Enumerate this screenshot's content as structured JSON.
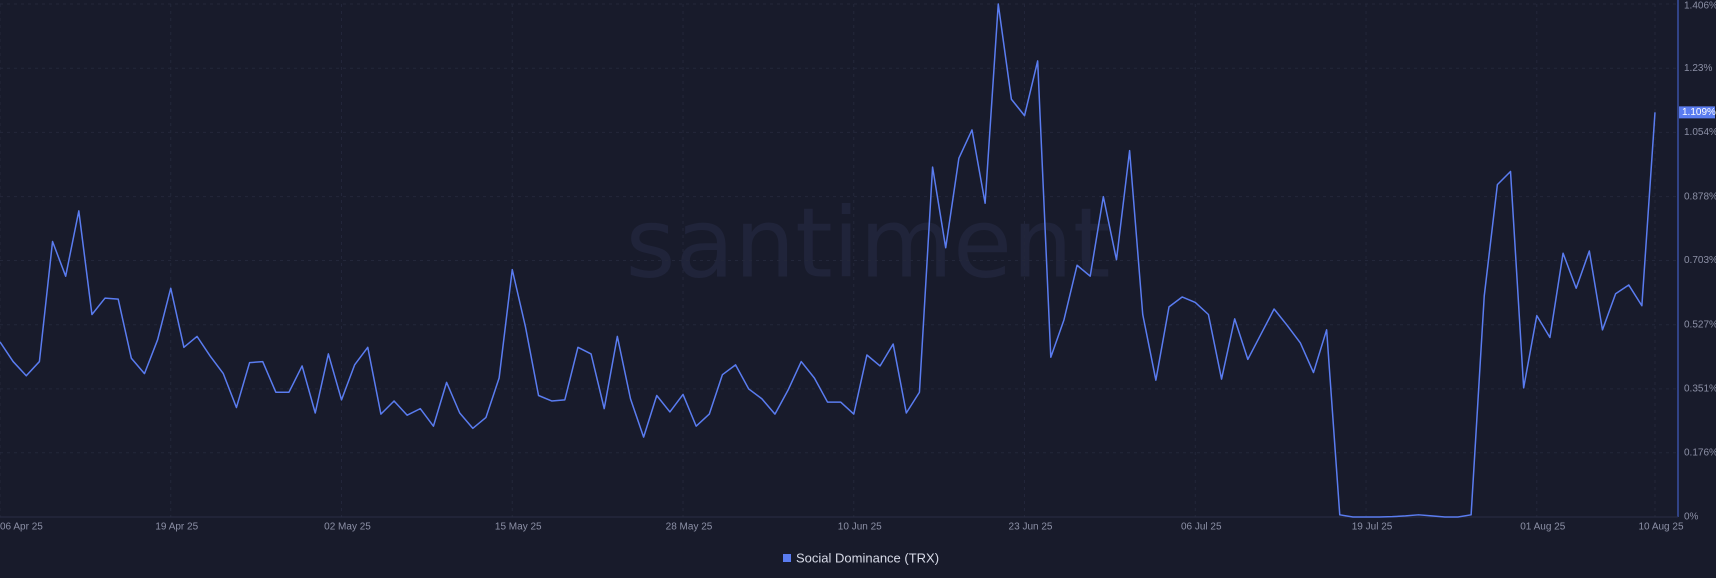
{
  "chart_data": {
    "type": "line",
    "watermark": "santiment",
    "x": [
      "2025-04-06",
      "2025-04-07",
      "2025-04-08",
      "2025-04-09",
      "2025-04-10",
      "2025-04-11",
      "2025-04-12",
      "2025-04-13",
      "2025-04-14",
      "2025-04-15",
      "2025-04-16",
      "2025-04-17",
      "2025-04-18",
      "2025-04-19",
      "2025-04-20",
      "2025-04-21",
      "2025-04-22",
      "2025-04-23",
      "2025-04-24",
      "2025-04-25",
      "2025-04-26",
      "2025-04-27",
      "2025-04-28",
      "2025-04-29",
      "2025-04-30",
      "2025-05-01",
      "2025-05-02",
      "2025-05-03",
      "2025-05-04",
      "2025-05-05",
      "2025-05-06",
      "2025-05-07",
      "2025-05-08",
      "2025-05-09",
      "2025-05-10",
      "2025-05-11",
      "2025-05-12",
      "2025-05-13",
      "2025-05-14",
      "2025-05-15",
      "2025-05-16",
      "2025-05-17",
      "2025-05-18",
      "2025-05-19",
      "2025-05-20",
      "2025-05-21",
      "2025-05-22",
      "2025-05-23",
      "2025-05-24",
      "2025-05-25",
      "2025-05-26",
      "2025-05-27",
      "2025-05-28",
      "2025-05-29",
      "2025-05-30",
      "2025-05-31",
      "2025-06-01",
      "2025-06-02",
      "2025-06-03",
      "2025-06-04",
      "2025-06-05",
      "2025-06-06",
      "2025-06-07",
      "2025-06-08",
      "2025-06-09",
      "2025-06-10",
      "2025-06-11",
      "2025-06-12",
      "2025-06-13",
      "2025-06-14",
      "2025-06-15",
      "2025-06-16",
      "2025-06-17",
      "2025-06-18",
      "2025-06-19",
      "2025-06-20",
      "2025-06-21",
      "2025-06-22",
      "2025-06-23",
      "2025-06-24",
      "2025-06-25",
      "2025-06-26",
      "2025-06-27",
      "2025-06-28",
      "2025-06-29",
      "2025-06-30",
      "2025-07-01",
      "2025-07-02",
      "2025-07-03",
      "2025-07-04",
      "2025-07-05",
      "2025-07-06",
      "2025-07-07",
      "2025-07-08",
      "2025-07-09",
      "2025-07-10",
      "2025-07-11",
      "2025-07-12",
      "2025-07-13",
      "2025-07-14",
      "2025-07-15",
      "2025-07-16",
      "2025-07-17",
      "2025-07-18",
      "2025-07-19",
      "2025-07-20",
      "2025-07-21",
      "2025-07-22",
      "2025-07-23",
      "2025-07-24",
      "2025-07-25",
      "2025-07-26",
      "2025-07-27",
      "2025-07-28",
      "2025-07-29",
      "2025-07-30",
      "2025-07-31",
      "2025-08-01",
      "2025-08-02",
      "2025-08-03",
      "2025-08-04",
      "2025-08-05",
      "2025-08-06",
      "2025-08-07",
      "2025-08-08",
      "2025-08-09",
      "2025-08-10"
    ],
    "series": [
      {
        "name": "Social Dominance (TRX)",
        "color": "#5a7cf0",
        "values": [
          0.48,
          0.426,
          0.387,
          0.426,
          0.755,
          0.66,
          0.839,
          0.555,
          0.6,
          0.597,
          0.435,
          0.393,
          0.486,
          0.627,
          0.465,
          0.495,
          0.441,
          0.393,
          0.3,
          0.423,
          0.426,
          0.342,
          0.342,
          0.414,
          0.285,
          0.447,
          0.321,
          0.417,
          0.465,
          0.282,
          0.318,
          0.279,
          0.297,
          0.249,
          0.369,
          0.285,
          0.243,
          0.273,
          0.381,
          0.678,
          0.522,
          0.333,
          0.318,
          0.321,
          0.465,
          0.447,
          0.297,
          0.495,
          0.324,
          0.219,
          0.333,
          0.288,
          0.336,
          0.249,
          0.282,
          0.39,
          0.417,
          0.351,
          0.324,
          0.282,
          0.348,
          0.426,
          0.381,
          0.315,
          0.315,
          0.282,
          0.444,
          0.414,
          0.474,
          0.285,
          0.342,
          0.959,
          0.738,
          0.983,
          1.061,
          0.86,
          1.406,
          1.145,
          1.1,
          1.25,
          0.438,
          0.54,
          0.69,
          0.66,
          0.878,
          0.705,
          1.004,
          0.555,
          0.375,
          0.576,
          0.603,
          0.588,
          0.555,
          0.378,
          0.543,
          0.432,
          0.501,
          0.57,
          0.525,
          0.477,
          0.396,
          0.513,
          0.006,
          0,
          0,
          0,
          0.001,
          0.003,
          0.006,
          0.003,
          0,
          0,
          0.006,
          0.606,
          0.911,
          0.947,
          0.354,
          0.552,
          0.492,
          0.723,
          0.627,
          0.729,
          0.513,
          0.612,
          0.636,
          0.579,
          1.109
        ],
        "last_value_label": "1.109%"
      }
    ],
    "xlim": [
      "2025-04-06",
      "2025-08-10"
    ],
    "xticks": [
      {
        "value": "2025-04-06",
        "label": "06 Apr 25"
      },
      {
        "value": "2025-04-19",
        "label": "19 Apr 25"
      },
      {
        "value": "2025-05-02",
        "label": "02 May 25"
      },
      {
        "value": "2025-05-15",
        "label": "15 May 25"
      },
      {
        "value": "2025-05-28",
        "label": "28 May 25"
      },
      {
        "value": "2025-06-10",
        "label": "10 Jun 25"
      },
      {
        "value": "2025-06-23",
        "label": "23 Jun 25"
      },
      {
        "value": "2025-07-06",
        "label": "06 Jul 25"
      },
      {
        "value": "2025-07-19",
        "label": "19 Jul 25"
      },
      {
        "value": "2025-08-01",
        "label": "01 Aug 25"
      },
      {
        "value": "2025-08-10",
        "label": "10 Aug 25"
      }
    ],
    "ylim": [
      0,
      1.406
    ],
    "yticks": [
      {
        "value": 0,
        "label": "0%"
      },
      {
        "value": 0.176,
        "label": "0.176%"
      },
      {
        "value": 0.351,
        "label": "0.351%"
      },
      {
        "value": 0.527,
        "label": "0.527%"
      },
      {
        "value": 0.703,
        "label": "0.703%"
      },
      {
        "value": 0.878,
        "label": "0.878%"
      },
      {
        "value": 1.054,
        "label": "1.054%"
      },
      {
        "value": 1.23,
        "label": "1.23%"
      },
      {
        "value": 1.406,
        "label": "1.406%"
      }
    ],
    "grid": true
  }
}
